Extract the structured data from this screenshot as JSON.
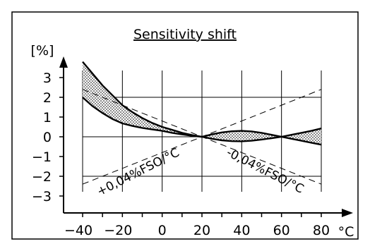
{
  "chart_data": {
    "type": "line",
    "title": "Sensitivity shift",
    "ylabel": "[%]",
    "x_unit": "°C",
    "x_ticks": [
      "-40",
      "-20",
      "0",
      "20",
      "40",
      "60",
      "80"
    ],
    "y_ticks": [
      "3",
      "2",
      "1",
      "0",
      "-1",
      "-2",
      "-3"
    ],
    "xlim": [
      -40,
      80
    ],
    "ylim": [
      -3,
      3
    ],
    "grid": true,
    "annotations": [
      "+0,04%FSO/°C",
      "-0,04%FSO/°C"
    ],
    "series": [
      {
        "name": "",
        "style": "solid",
        "x": [
          -40,
          -35,
          -30,
          -25,
          -20,
          -15,
          -10,
          -5,
          0,
          5,
          10,
          15,
          20,
          25,
          30,
          35,
          40,
          45,
          50,
          55,
          60,
          65,
          70,
          75,
          80
        ],
        "y": [
          3.8,
          3.2,
          2.6,
          2.1,
          1.6,
          1.25,
          0.95,
          0.7,
          0.5,
          0.35,
          0.2,
          0.09,
          0,
          0.12,
          0.22,
          0.28,
          0.3,
          0.27,
          0.2,
          0.1,
          0,
          -0.1,
          -0.2,
          -0.3,
          -0.4
        ]
      },
      {
        "name": "",
        "style": "solid",
        "x": [
          -40,
          -35,
          -30,
          -25,
          -20,
          -15,
          -10,
          -5,
          0,
          5,
          10,
          15,
          20,
          25,
          30,
          35,
          40,
          45,
          50,
          55,
          60,
          65,
          70,
          75,
          80
        ],
        "y": [
          2.0,
          1.55,
          1.2,
          0.9,
          0.68,
          0.55,
          0.45,
          0.37,
          0.3,
          0.2,
          0.12,
          0.05,
          0,
          -0.1,
          -0.18,
          -0.22,
          -0.23,
          -0.2,
          -0.14,
          -0.07,
          0,
          0.1,
          0.2,
          0.3,
          0.42
        ]
      },
      {
        "name": "",
        "style": "dashed",
        "x": [
          -40,
          80
        ],
        "y": [
          2.4,
          -2.4
        ]
      },
      {
        "name": "",
        "style": "dashed",
        "x": [
          -40,
          80
        ],
        "y": [
          -2.4,
          2.4
        ]
      }
    ]
  }
}
